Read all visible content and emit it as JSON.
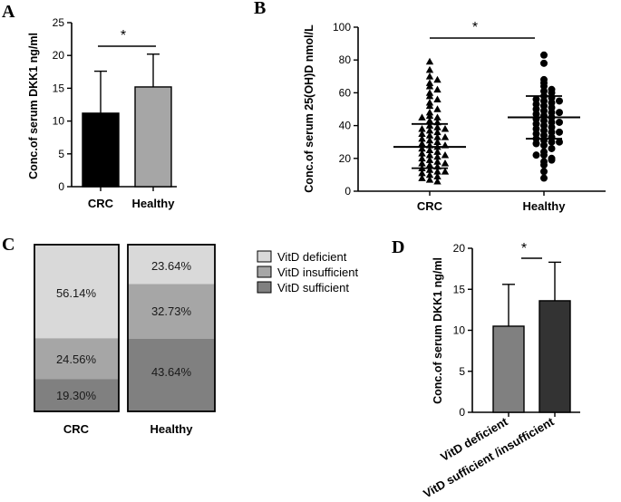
{
  "chart_data": [
    {
      "panel": "A",
      "type": "bar",
      "categories": [
        "CRC",
        "Healthy"
      ],
      "values": [
        11.2,
        15.2
      ],
      "error_upper": [
        17.6,
        20.2
      ],
      "colors": [
        "#000000",
        "#a6a6a6"
      ],
      "ylabel": "Conc.of serum DKK1 ng/ml",
      "ylim": [
        0,
        25
      ],
      "yticks": [
        0,
        5,
        10,
        15,
        20,
        25
      ],
      "significance": "*"
    },
    {
      "panel": "B",
      "type": "scatter",
      "categories": [
        "CRC",
        "Healthy"
      ],
      "ylabel": "Conc.of serum 25(OH)D nmol/L",
      "ylim": [
        0,
        100
      ],
      "yticks": [
        0,
        20,
        40,
        60,
        80,
        100
      ],
      "significance": "*",
      "groups": [
        {
          "name": "CRC",
          "marker": "triangle",
          "center": 27,
          "sd_upper": 41,
          "sd_lower": 14,
          "points": [
            79,
            74,
            70,
            68,
            66,
            64,
            62,
            60,
            58,
            56,
            54,
            52,
            50,
            48,
            46,
            45,
            43,
            42,
            40,
            39,
            38,
            37,
            36,
            35,
            34,
            33,
            32,
            31,
            30,
            29,
            28,
            27,
            26,
            25,
            24,
            23,
            22,
            21,
            20,
            19,
            18,
            17,
            16,
            15,
            14,
            13,
            12,
            11,
            10,
            9,
            8,
            7,
            6,
            45,
            38,
            33,
            28,
            22,
            17,
            12
          ]
        },
        {
          "name": "Healthy",
          "marker": "circle",
          "center": 45,
          "sd_upper": 58,
          "sd_lower": 32,
          "points": [
            83,
            78,
            68,
            66,
            64,
            62,
            61,
            60,
            58,
            57,
            56,
            55,
            54,
            53,
            52,
            51,
            50,
            49,
            48,
            47,
            46,
            45,
            44,
            43,
            42,
            41,
            40,
            39,
            38,
            37,
            36,
            35,
            34,
            33,
            32,
            31,
            30,
            29,
            28,
            26,
            24,
            22,
            20,
            18,
            16,
            12,
            8,
            55,
            48,
            42,
            36,
            30,
            22,
            19
          ]
        }
      ]
    },
    {
      "panel": "C",
      "type": "bar",
      "stacked": true,
      "categories": [
        "CRC",
        "Healthy"
      ],
      "series": [
        {
          "name": "VitD deficient",
          "color": "#d9d9d9",
          "values": [
            56.14,
            23.64
          ],
          "labels": [
            "56.14%",
            "23.64%"
          ]
        },
        {
          "name": "VitD insufficient",
          "color": "#a6a6a6",
          "values": [
            24.56,
            32.73
          ],
          "labels": [
            "24.56%",
            "32.73%"
          ]
        },
        {
          "name": "VitD sufficient",
          "color": "#808080",
          "values": [
            19.3,
            43.64
          ],
          "labels": [
            "19.30%",
            "43.64%"
          ]
        }
      ],
      "legend": "right"
    },
    {
      "panel": "D",
      "type": "bar",
      "categories": [
        "VitD deficient",
        "VitD sufficient /insufficient"
      ],
      "values": [
        10.5,
        13.6
      ],
      "error_upper": [
        15.6,
        18.3
      ],
      "colors": [
        "#808080",
        "#333333"
      ],
      "ylabel": "Conc.of serum DKK1 ng/ml",
      "ylim": [
        0,
        20
      ],
      "yticks": [
        0,
        5,
        10,
        15,
        20
      ],
      "significance": "*"
    }
  ]
}
